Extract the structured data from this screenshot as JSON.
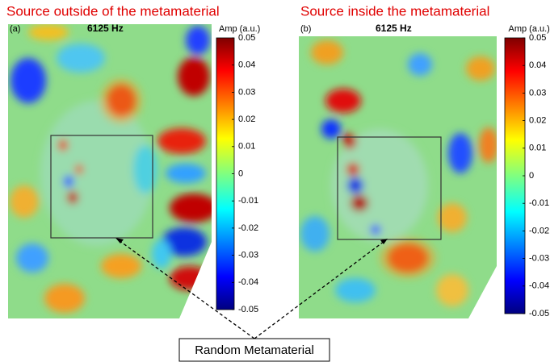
{
  "panels": [
    {
      "heading": "Source outside of the metamaterial",
      "label": "(a)",
      "frequency": "6125 Hz",
      "colorbar": {
        "title": "Amp (a.u.)",
        "range": [
          -0.05,
          0.05
        ],
        "ticks": [
          0.05,
          0.04,
          0.03,
          0.02,
          0.01,
          0,
          -0.01,
          -0.02,
          -0.03,
          -0.04,
          -0.05
        ]
      }
    },
    {
      "heading": "Source inside the metamaterial",
      "label": "(b)",
      "frequency": "6125 Hz",
      "colorbar": {
        "title": "Amp (a.u.)",
        "range": [
          -0.05,
          0.05
        ],
        "ticks": [
          0.05,
          0.04,
          0.03,
          0.02,
          0.01,
          0,
          -0.01,
          -0.02,
          -0.03,
          -0.04,
          -0.05
        ]
      }
    }
  ],
  "annotation": "Random Metamaterial"
}
